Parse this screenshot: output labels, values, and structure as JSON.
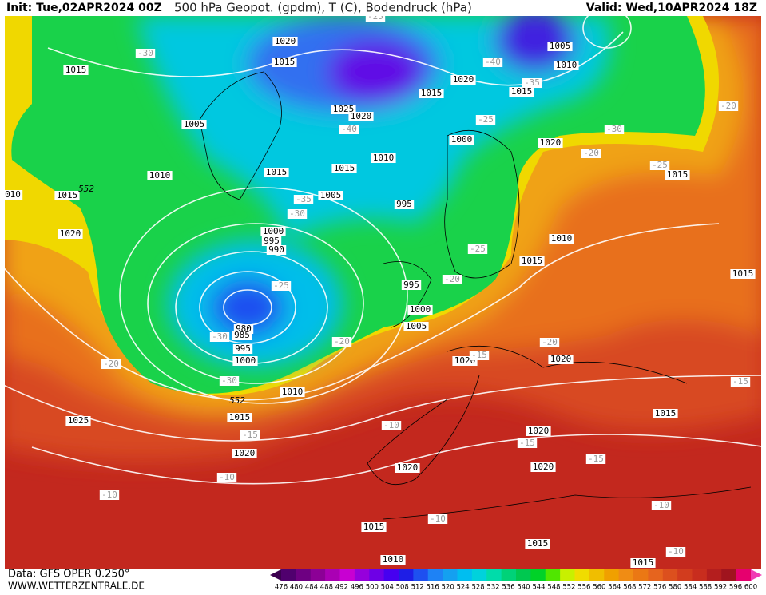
{
  "header": {
    "init": "Init: Tue,02APR2024 00Z",
    "title": "500 hPa Geopot. (gpdm), T (C), Bodendruck (hPa)",
    "valid": "Valid: Wed,10APR2024 18Z"
  },
  "footer": {
    "source": "Data: GFS OPER 0.250°",
    "website": "WWW.WETTERZENTRALE.DE"
  },
  "map": {
    "pressure_labels": [
      "1020",
      "1015",
      "1020",
      "1015",
      "1005",
      "1010",
      "1015",
      "1015",
      "1005",
      "1025",
      "1020",
      "1000",
      "1020",
      "1010",
      "1015",
      "1015",
      "1010",
      "1015",
      "1015",
      "010",
      "1005",
      "995",
      "1020",
      "1000",
      "995",
      "990",
      "1010",
      "1015",
      "1015",
      "995",
      "1000",
      "1005",
      "980",
      "985",
      "995",
      "1000",
      "1020",
      "1020",
      "1010",
      "1015",
      "1025",
      "1015",
      "1020",
      "1020",
      "1020",
      "1020",
      "1015",
      "1015",
      "1010",
      "1015"
    ],
    "temperature_labels": [
      "-30",
      "-25",
      "-40",
      "-35",
      "-25",
      "-40",
      "-30",
      "-20",
      "-20",
      "-25",
      "-35",
      "-30",
      "-25",
      "-25",
      "-20",
      "-30",
      "-20",
      "-20",
      "-15",
      "-20",
      "-15",
      "-30",
      "-10",
      "-15",
      "-15",
      "-15",
      "-10",
      "-10",
      "-10",
      "-10",
      "-10"
    ],
    "geopotential_labels": [
      "552",
      "552"
    ]
  },
  "legend": {
    "ticks": [
      476,
      480,
      484,
      488,
      492,
      496,
      500,
      504,
      508,
      512,
      516,
      520,
      524,
      528,
      532,
      536,
      540,
      544,
      548,
      552,
      556,
      560,
      564,
      568,
      572,
      576,
      580,
      584,
      588,
      592,
      596,
      600
    ],
    "colors": [
      "#3c0050",
      "#50006e",
      "#6e0082",
      "#8c0096",
      "#aa00b4",
      "#c800d2",
      "#9600dc",
      "#6e00e6",
      "#4600f0",
      "#1e1ee6",
      "#1e50f0",
      "#1e82f5",
      "#14a0f0",
      "#00bef0",
      "#00d2dc",
      "#00dcaa",
      "#00d278",
      "#00c850",
      "#00d228",
      "#50e600",
      "#c8f000",
      "#f0dc00",
      "#f0be00",
      "#f0a000",
      "#f08c14",
      "#eb7814",
      "#e6641e",
      "#dc501e",
      "#d23c1e",
      "#c82d1e",
      "#b41e1e",
      "#a0141e",
      "#e6006e",
      "#f03cb4"
    ]
  }
}
